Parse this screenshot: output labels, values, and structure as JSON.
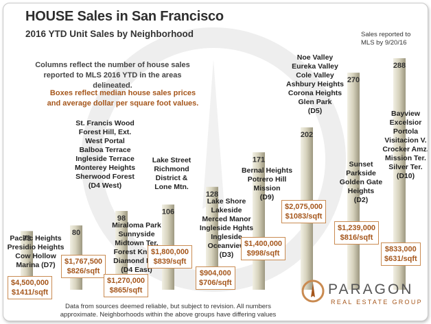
{
  "title": "HOUSE Sales in San Francisco",
  "subtitle": "2016 YTD Unit Sales by Neighborhood",
  "reported_note": "Sales reported to\nMLS by 9/20/16",
  "description_columns": "Columns reflect the number of house sales reported to MLS 2016 YTD in the areas delineated.",
  "description_boxes": "Boxes reflect median house sales prices and average dollar per square foot values.",
  "footer": "Data from sources deemed reliable, but subject to revision. All numbers\napproximate. Neighborhoods within the above groups have differing values",
  "logo": {
    "name": "PARAGON",
    "tagline": "REAL ESTATE GROUP"
  },
  "colors": {
    "bar_light": "#e9e6d6",
    "bar_dark": "#9d9880",
    "price_border": "#c98a50",
    "price_text": "#a5561b",
    "watermark": "#ececec"
  },
  "chart_data": {
    "type": "bar",
    "title": "HOUSE Sales in San Francisco",
    "subtitle": "2016 YTD Unit Sales by Neighborhood",
    "xlabel": "",
    "ylabel": "",
    "categories": [
      "Pacific Heights, Presidio Heights, Cow Hollow, Marina (D7)",
      "St. Francis Wood, Forest Hill, Ext., West Portal, Balboa Terrace, Ingleside Terrace, Monterey Heights, Sherwood Forest (D4 West)",
      "Miraloma Park, Sunnyside, Midtown Ter., Forest Knolls, Diamond Hts. (D4 East)",
      "Lake Street, Richmond District & Lone Mtn.",
      "Lake Shore, Lakeside, Merced Manor, Ingleside Hghts, Ingleside, Oceanview (D3)",
      "Bernal Heights, Potrero Hill, Mission (D9)",
      "Noe Valley, Eureka Valley, Cole Valley, Ashbury Heights, Corona Heights, Glen Park (D5)",
      "Sunset, Parkside, Golden Gate Heights (D2)",
      "Bayview, Excelsior, Portola, Visitacion V., Crocker Amz., Mission Ter., Silver Ter. (D10)"
    ],
    "values": [
      73,
      80,
      98,
      106,
      128,
      171,
      202,
      270,
      288
    ],
    "value_labels": [
      "73",
      "80",
      "98",
      "106",
      "128",
      "171",
      "202",
      "270",
      "288"
    ],
    "neighborhood_labels": [
      "Pacific Heights\nPresidio Heights\nCow Hollow\nMarina (D7)",
      "St. Francis Wood\nForest Hill, Ext.\nWest Portal\nBalboa Terrace\nIngleside Terrace\nMonterey Heights\nSherwood Forest\n(D4 West)",
      "Miraloma Park\nSunnyside\nMidtown Ter.\nForest Knolls\nDiamond Hts.\n(D4 East)",
      "Lake Street\nRichmond\nDistrict &\nLone Mtn.",
      "Lake Shore\nLakeside\nMerced Manor\nIngleside Hghts\nIngleside\nOceanview\n(D3)",
      "Bernal Heights\nPotrero Hill\nMission\n(D9)",
      "Noe Valley\nEureka Valley\nCole Valley\nAshbury Heights\nCorona Heights\nGlen Park\n(D5)",
      "Sunset\nParkside\nGolden Gate\nHeights\n(D2)",
      "Bayview\nExcelsior\nPortola\nVisitacion V.\nCrocker Amz.\nMission Ter.\nSilver Ter.\n(D10)"
    ],
    "median_price_labels": [
      "$4,500,000\n$1411/sqft",
      "$1,767,500\n$826/sqft",
      "$1,270,000\n$865/sqft",
      "$1,800,000\n$839/sqft",
      "$904,000\n$706/sqft",
      "$1,400,000\n$998/sqft",
      "$2,075,000\n$1083/sqft",
      "$1,239,000\n$816/sqft",
      "$833,000\n$631/sqft"
    ],
    "median_price": [
      4500000,
      1767500,
      1270000,
      1800000,
      904000,
      1400000,
      2075000,
      1239000,
      833000
    ],
    "price_per_sqft": [
      1411,
      826,
      865,
      839,
      706,
      998,
      1083,
      816,
      631
    ],
    "ylim": [
      0,
      300
    ],
    "grid": false,
    "legend": "none"
  }
}
